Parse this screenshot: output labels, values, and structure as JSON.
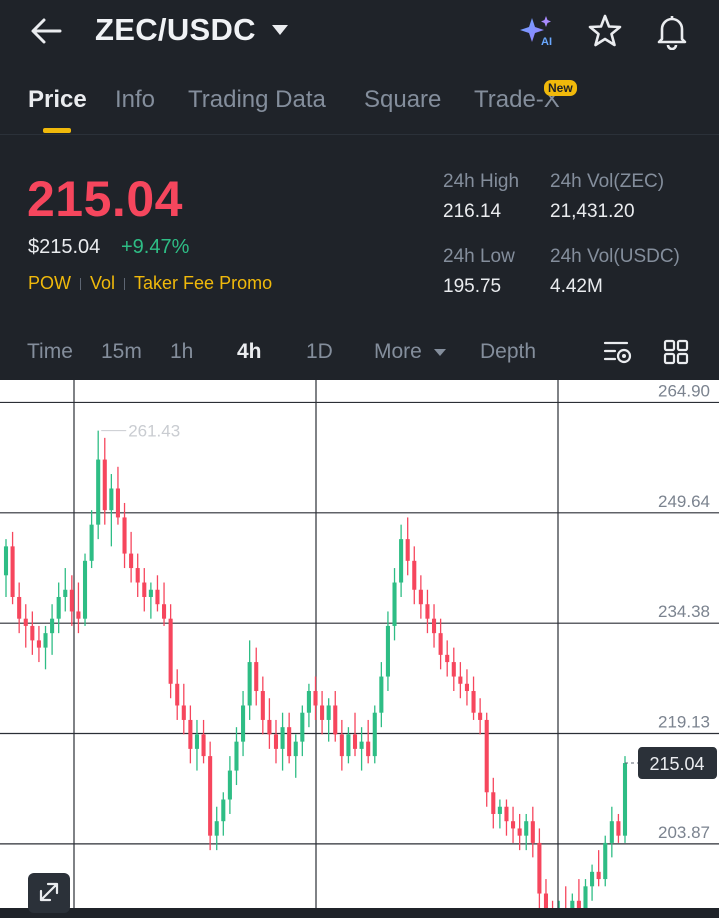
{
  "header": {
    "pair": "ZEC/USDC",
    "icons": [
      "back-arrow-icon",
      "caret-down-icon",
      "ai-sparkle-icon",
      "star-icon",
      "bell-icon"
    ]
  },
  "tabs": [
    {
      "label": "Price",
      "active": true
    },
    {
      "label": "Info"
    },
    {
      "label": "Trading Data"
    },
    {
      "label": "Square"
    },
    {
      "label": "Trade-X",
      "badge": "New"
    }
  ],
  "ai_badge": "AI",
  "ticker": {
    "last_price": "215.04",
    "usd_price": "$215.04",
    "change_pct": "+9.47%",
    "tags": [
      "POW",
      "Vol",
      "Taker Fee Promo"
    ]
  },
  "stats": {
    "high_label": "24h High",
    "high_value": "216.14",
    "vol_base_label": "24h Vol(ZEC)",
    "vol_base_value": "21,431.20",
    "low_label": "24h Low",
    "low_value": "195.75",
    "vol_quote_label": "24h Vol(USDC)",
    "vol_quote_value": "4.42M"
  },
  "intervals": [
    {
      "label": "Time"
    },
    {
      "label": "15m"
    },
    {
      "label": "1h"
    },
    {
      "label": "4h",
      "active": true
    },
    {
      "label": "1D"
    },
    {
      "label": "More"
    },
    {
      "label": "Depth"
    }
  ],
  "colors": {
    "up": "#2ebd85",
    "down": "#f6465d",
    "accent": "#f0b90b",
    "bg": "#1f2329"
  },
  "chart_data": {
    "type": "candlestick",
    "interval": "4h",
    "y_ticks": [
      "264.90",
      "249.64",
      "234.38",
      "219.13",
      "203.87"
    ],
    "ylim": [
      195,
      268
    ],
    "max_label": "261.43",
    "current_price_label": "215.04",
    "grid": true,
    "candles": [
      {
        "o": 241,
        "h": 246,
        "l": 238,
        "c": 245
      },
      {
        "o": 245,
        "h": 247,
        "l": 237,
        "c": 238
      },
      {
        "o": 238,
        "h": 240,
        "l": 233,
        "c": 235
      },
      {
        "o": 235,
        "h": 237,
        "l": 231,
        "c": 234
      },
      {
        "o": 234,
        "h": 236,
        "l": 230,
        "c": 232
      },
      {
        "o": 232,
        "h": 234,
        "l": 229,
        "c": 231
      },
      {
        "o": 231,
        "h": 234,
        "l": 228,
        "c": 233
      },
      {
        "o": 233,
        "h": 237,
        "l": 230,
        "c": 235
      },
      {
        "o": 235,
        "h": 240,
        "l": 233,
        "c": 238
      },
      {
        "o": 238,
        "h": 242,
        "l": 236,
        "c": 239
      },
      {
        "o": 239,
        "h": 241,
        "l": 234,
        "c": 236
      },
      {
        "o": 236,
        "h": 240,
        "l": 233,
        "c": 235
      },
      {
        "o": 235,
        "h": 244,
        "l": 234,
        "c": 243
      },
      {
        "o": 243,
        "h": 250,
        "l": 242,
        "c": 248
      },
      {
        "o": 248,
        "h": 261,
        "l": 246,
        "c": 257
      },
      {
        "o": 257,
        "h": 260,
        "l": 248,
        "c": 250
      },
      {
        "o": 250,
        "h": 255,
        "l": 245,
        "c": 253
      },
      {
        "o": 253,
        "h": 256,
        "l": 248,
        "c": 249
      },
      {
        "o": 249,
        "h": 251,
        "l": 242,
        "c": 244
      },
      {
        "o": 244,
        "h": 247,
        "l": 240,
        "c": 242
      },
      {
        "o": 242,
        "h": 244,
        "l": 238,
        "c": 240
      },
      {
        "o": 240,
        "h": 242,
        "l": 236,
        "c": 238
      },
      {
        "o": 238,
        "h": 240,
        "l": 235,
        "c": 239
      },
      {
        "o": 239,
        "h": 241,
        "l": 236,
        "c": 237
      },
      {
        "o": 237,
        "h": 240,
        "l": 234,
        "c": 235
      },
      {
        "o": 235,
        "h": 237,
        "l": 224,
        "c": 226
      },
      {
        "o": 226,
        "h": 228,
        "l": 221,
        "c": 223
      },
      {
        "o": 223,
        "h": 226,
        "l": 219,
        "c": 221
      },
      {
        "o": 221,
        "h": 223,
        "l": 215,
        "c": 217
      },
      {
        "o": 217,
        "h": 221,
        "l": 214,
        "c": 219
      },
      {
        "o": 219,
        "h": 221,
        "l": 215,
        "c": 216
      },
      {
        "o": 216,
        "h": 218,
        "l": 203,
        "c": 205
      },
      {
        "o": 205,
        "h": 209,
        "l": 203,
        "c": 207
      },
      {
        "o": 207,
        "h": 211,
        "l": 205,
        "c": 210
      },
      {
        "o": 210,
        "h": 216,
        "l": 208,
        "c": 214
      },
      {
        "o": 214,
        "h": 220,
        "l": 212,
        "c": 218
      },
      {
        "o": 218,
        "h": 225,
        "l": 216,
        "c": 223
      },
      {
        "o": 223,
        "h": 232,
        "l": 221,
        "c": 229
      },
      {
        "o": 229,
        "h": 231,
        "l": 223,
        "c": 225
      },
      {
        "o": 225,
        "h": 227,
        "l": 219,
        "c": 221
      },
      {
        "o": 221,
        "h": 224,
        "l": 217,
        "c": 219
      },
      {
        "o": 219,
        "h": 221,
        "l": 215,
        "c": 217
      },
      {
        "o": 217,
        "h": 222,
        "l": 214,
        "c": 220
      },
      {
        "o": 220,
        "h": 222,
        "l": 215,
        "c": 216
      },
      {
        "o": 216,
        "h": 219,
        "l": 213,
        "c": 218
      },
      {
        "o": 218,
        "h": 223,
        "l": 216,
        "c": 222
      },
      {
        "o": 222,
        "h": 226,
        "l": 220,
        "c": 225
      },
      {
        "o": 225,
        "h": 227,
        "l": 221,
        "c": 223
      },
      {
        "o": 223,
        "h": 225,
        "l": 219,
        "c": 221
      },
      {
        "o": 221,
        "h": 224,
        "l": 218,
        "c": 223
      },
      {
        "o": 223,
        "h": 225,
        "l": 218,
        "c": 219
      },
      {
        "o": 219,
        "h": 221,
        "l": 214,
        "c": 216
      },
      {
        "o": 216,
        "h": 220,
        "l": 215,
        "c": 219
      },
      {
        "o": 219,
        "h": 222,
        "l": 216,
        "c": 217
      },
      {
        "o": 217,
        "h": 220,
        "l": 214,
        "c": 218
      },
      {
        "o": 218,
        "h": 221,
        "l": 215,
        "c": 216
      },
      {
        "o": 216,
        "h": 223,
        "l": 215,
        "c": 222
      },
      {
        "o": 222,
        "h": 229,
        "l": 220,
        "c": 227
      },
      {
        "o": 227,
        "h": 236,
        "l": 225,
        "c": 234
      },
      {
        "o": 234,
        "h": 242,
        "l": 232,
        "c": 240
      },
      {
        "o": 240,
        "h": 248,
        "l": 238,
        "c": 246
      },
      {
        "o": 246,
        "h": 249,
        "l": 241,
        "c": 243
      },
      {
        "o": 243,
        "h": 245,
        "l": 237,
        "c": 239
      },
      {
        "o": 239,
        "h": 241,
        "l": 235,
        "c": 237
      },
      {
        "o": 237,
        "h": 239,
        "l": 233,
        "c": 235
      },
      {
        "o": 235,
        "h": 237,
        "l": 231,
        "c": 233
      },
      {
        "o": 233,
        "h": 235,
        "l": 228,
        "c": 230
      },
      {
        "o": 230,
        "h": 232,
        "l": 227,
        "c": 229
      },
      {
        "o": 229,
        "h": 231,
        "l": 225,
        "c": 227
      },
      {
        "o": 227,
        "h": 229,
        "l": 224,
        "c": 226
      },
      {
        "o": 226,
        "h": 228,
        "l": 223,
        "c": 225
      },
      {
        "o": 225,
        "h": 227,
        "l": 221,
        "c": 222
      },
      {
        "o": 222,
        "h": 224,
        "l": 219,
        "c": 221
      },
      {
        "o": 221,
        "h": 222,
        "l": 209,
        "c": 211
      },
      {
        "o": 211,
        "h": 213,
        "l": 206,
        "c": 208
      },
      {
        "o": 208,
        "h": 210,
        "l": 206,
        "c": 209
      },
      {
        "o": 209,
        "h": 210,
        "l": 205,
        "c": 207
      },
      {
        "o": 207,
        "h": 209,
        "l": 204,
        "c": 206
      },
      {
        "o": 206,
        "h": 208,
        "l": 203,
        "c": 205
      },
      {
        "o": 205,
        "h": 208,
        "l": 203,
        "c": 207
      },
      {
        "o": 207,
        "h": 209,
        "l": 202,
        "c": 204
      },
      {
        "o": 204,
        "h": 206,
        "l": 195,
        "c": 197
      },
      {
        "o": 197,
        "h": 199,
        "l": 194,
        "c": 195
      },
      {
        "o": 195,
        "h": 196,
        "l": 191,
        "c": 192
      },
      {
        "o": 192,
        "h": 196,
        "l": 190,
        "c": 195
      },
      {
        "o": 195,
        "h": 198,
        "l": 193,
        "c": 194
      },
      {
        "o": 194,
        "h": 197,
        "l": 192,
        "c": 196
      },
      {
        "o": 196,
        "h": 199,
        "l": 194,
        "c": 195
      },
      {
        "o": 195,
        "h": 199,
        "l": 193,
        "c": 198
      },
      {
        "o": 198,
        "h": 201,
        "l": 196,
        "c": 200
      },
      {
        "o": 200,
        "h": 203,
        "l": 198,
        "c": 199
      },
      {
        "o": 199,
        "h": 205,
        "l": 198,
        "c": 204
      },
      {
        "o": 204,
        "h": 209,
        "l": 202,
        "c": 207
      },
      {
        "o": 207,
        "h": 208,
        "l": 204,
        "c": 205
      },
      {
        "o": 205,
        "h": 216,
        "l": 204,
        "c": 215.04
      }
    ]
  }
}
